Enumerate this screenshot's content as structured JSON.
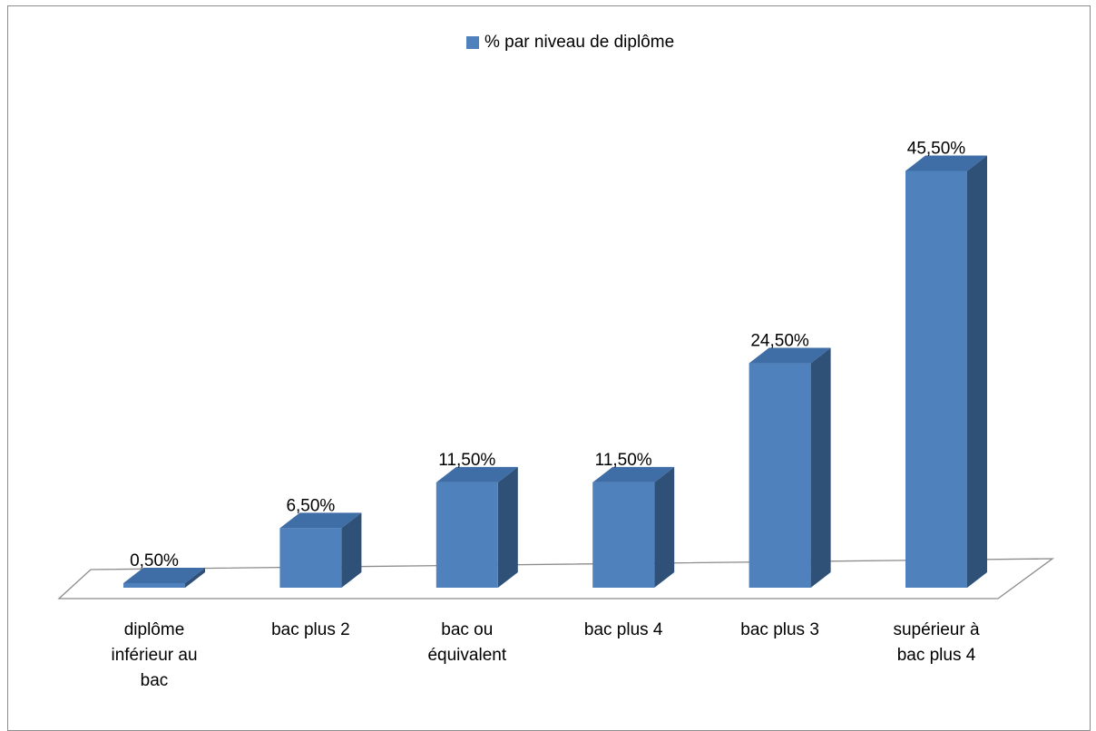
{
  "chart_data": {
    "type": "bar",
    "categories": [
      "diplôme inférieur au bac",
      "bac plus 2",
      "bac ou équivalent",
      "bac plus 4",
      "bac plus 3",
      "supérieur à bac plus 4"
    ],
    "category_lines": [
      [
        "diplôme",
        "inférieur au",
        "bac"
      ],
      [
        "bac plus 2"
      ],
      [
        "bac ou",
        "équivalent"
      ],
      [
        "bac plus 4"
      ],
      [
        "bac plus 3"
      ],
      [
        "supérieur à",
        "bac plus 4"
      ]
    ],
    "series": [
      {
        "name": "% par  niveau de diplôme",
        "values": [
          0.5,
          6.5,
          11.5,
          11.5,
          24.5,
          45.5
        ],
        "labels": [
          "0,50%",
          "6,50%",
          "11,50%",
          "11,50%",
          "24,50%",
          "45,50%"
        ]
      }
    ],
    "legend_position": "top",
    "style": "3d-column",
    "grid": false,
    "colors": {
      "front": "#4f81bd",
      "top": "#3f6da5",
      "side": "#2f5178",
      "floor_line": "#8c8c8c"
    }
  }
}
